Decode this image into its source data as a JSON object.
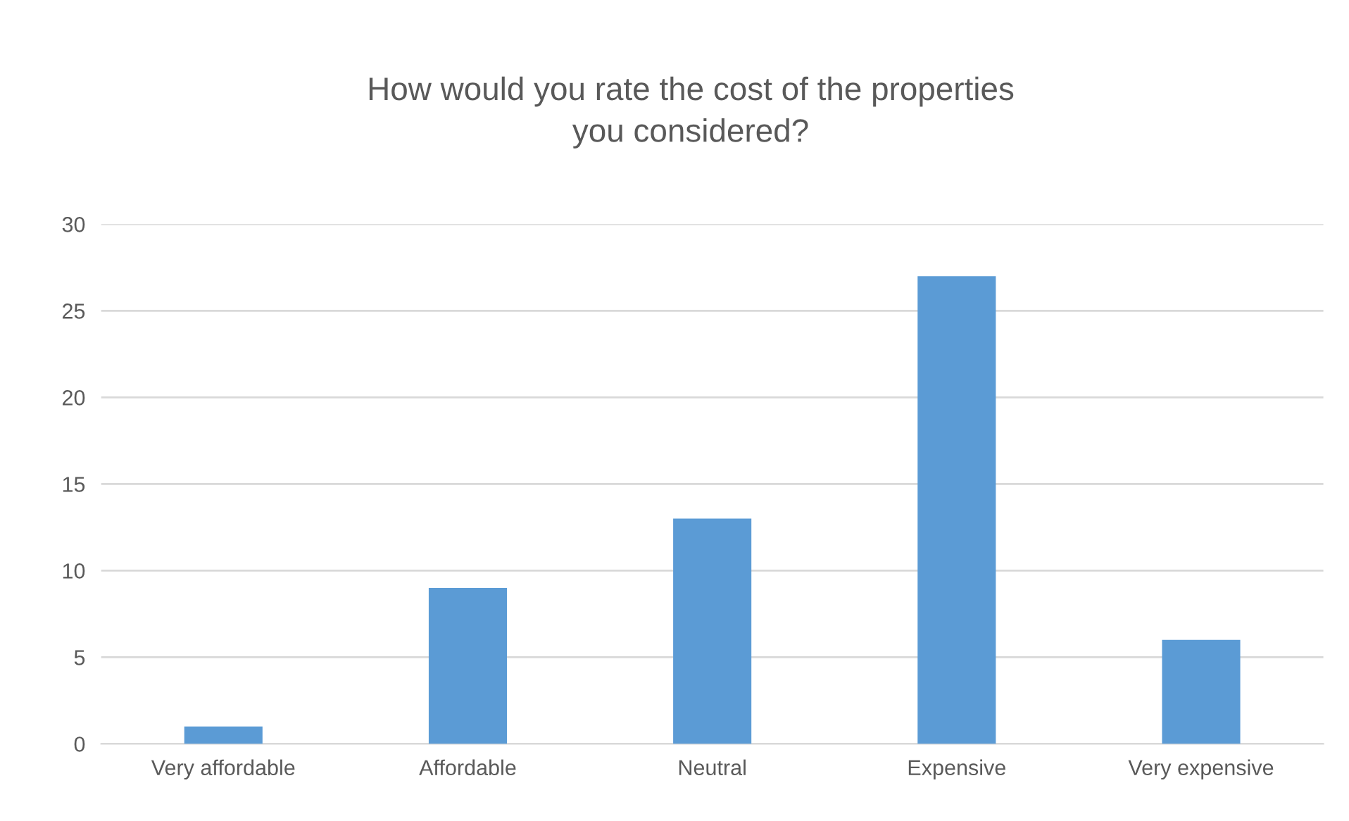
{
  "chart_data": {
    "type": "bar",
    "title": "How would you rate the cost of the properties\nyou considered?",
    "categories": [
      "Very affordable",
      "Affordable",
      "Neutral",
      "Expensive",
      "Very expensive"
    ],
    "values": [
      1,
      9,
      13,
      27,
      6
    ],
    "color": "#5b9bd5",
    "ylim": [
      0,
      30
    ],
    "yticks": [
      0,
      5,
      10,
      15,
      20,
      25,
      30
    ],
    "grid": "y",
    "legend": false
  }
}
